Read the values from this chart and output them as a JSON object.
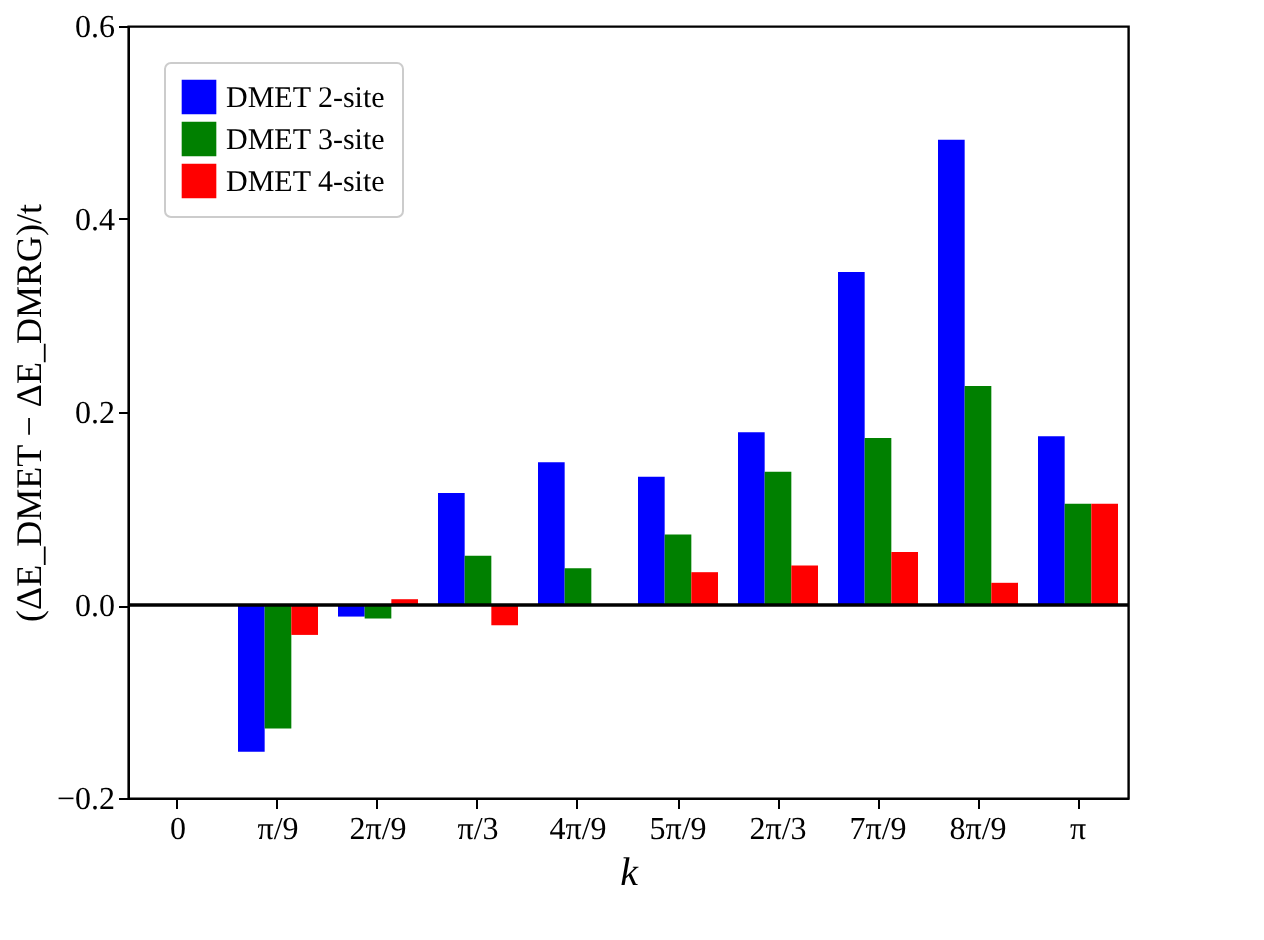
{
  "chart_data": {
    "type": "bar",
    "xlabel": "k",
    "ylabel": "(ΔE_DMET − ΔE_DMRG)/t",
    "categories": [
      "0",
      "π/9",
      "2π/9",
      "π/3",
      "4π/9",
      "5π/9",
      "2π/3",
      "7π/9",
      "8π/9",
      "π"
    ],
    "series": [
      {
        "name": "DMET 2-site",
        "color": "#0000ff",
        "values": [
          null,
          -0.152,
          -0.012,
          0.116,
          0.148,
          0.133,
          0.179,
          0.345,
          0.482,
          0.175
        ]
      },
      {
        "name": "DMET 3-site",
        "color": "#008000",
        "values": [
          null,
          -0.128,
          -0.014,
          0.051,
          0.038,
          0.073,
          0.138,
          0.173,
          0.227,
          0.105
        ]
      },
      {
        "name": "DMET 4-site",
        "color": "#ff0000",
        "values": [
          null,
          -0.031,
          0.006,
          -0.021,
          null,
          0.034,
          0.041,
          0.055,
          0.023,
          0.105
        ]
      }
    ],
    "ylim": [
      -0.2,
      0.6
    ],
    "yticks": [
      -0.2,
      {
        "value": 0,
        "label": "0.0"
      },
      0.2,
      0.4,
      0.6
    ],
    "ref_lines": [
      {
        "axis": "y",
        "value": 0,
        "color": "#000000"
      }
    ],
    "grid": false,
    "legend": "top left"
  }
}
